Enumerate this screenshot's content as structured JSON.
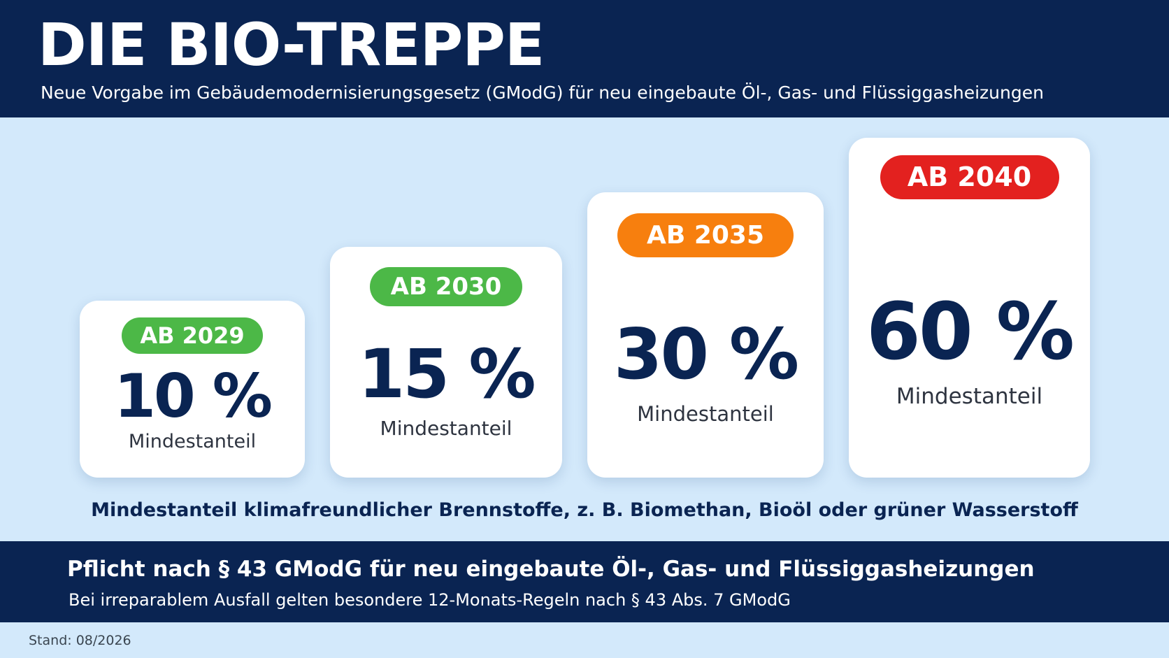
{
  "header": {
    "title": "DIE BIO-TREPPE",
    "subtitle": "Neue Vorgabe im Gebäudemodernisierungsgesetz (GModG) für neu eingebaute Öl-, Gas- und Flüssiggasheizungen"
  },
  "steps": [
    {
      "badge": "AB 2029",
      "value": "10 %",
      "label": "Mindestanteil",
      "badge_color": "#4cb847"
    },
    {
      "badge": "AB 2030",
      "value": "15 %",
      "label": "Mindestanteil",
      "badge_color": "#4cb847"
    },
    {
      "badge": "AB 2035",
      "value": "30 %",
      "label": "Mindestanteil",
      "badge_color": "#f77f0e"
    },
    {
      "badge": "AB 2040",
      "value": "60 %",
      "label": "Mindestanteil",
      "badge_color": "#e3211f"
    }
  ],
  "note": "Mindestanteil klimafreundlicher Brennstoffe, z. B. Biomethan, Bioöl oder grüner Wasserstoff",
  "footer": {
    "main": "Pflicht nach § 43 GModG für neu eingebaute Öl-, Gas- und Flüssiggasheizungen",
    "sub": "Bei irreparablem Ausfall gelten besondere 12-Monats-Regeln nach § 43 Abs. 7 GModG"
  },
  "stand": "Stand: 08/2026",
  "colors": {
    "navy": "#0a2452",
    "background": "#d3e9fb"
  }
}
